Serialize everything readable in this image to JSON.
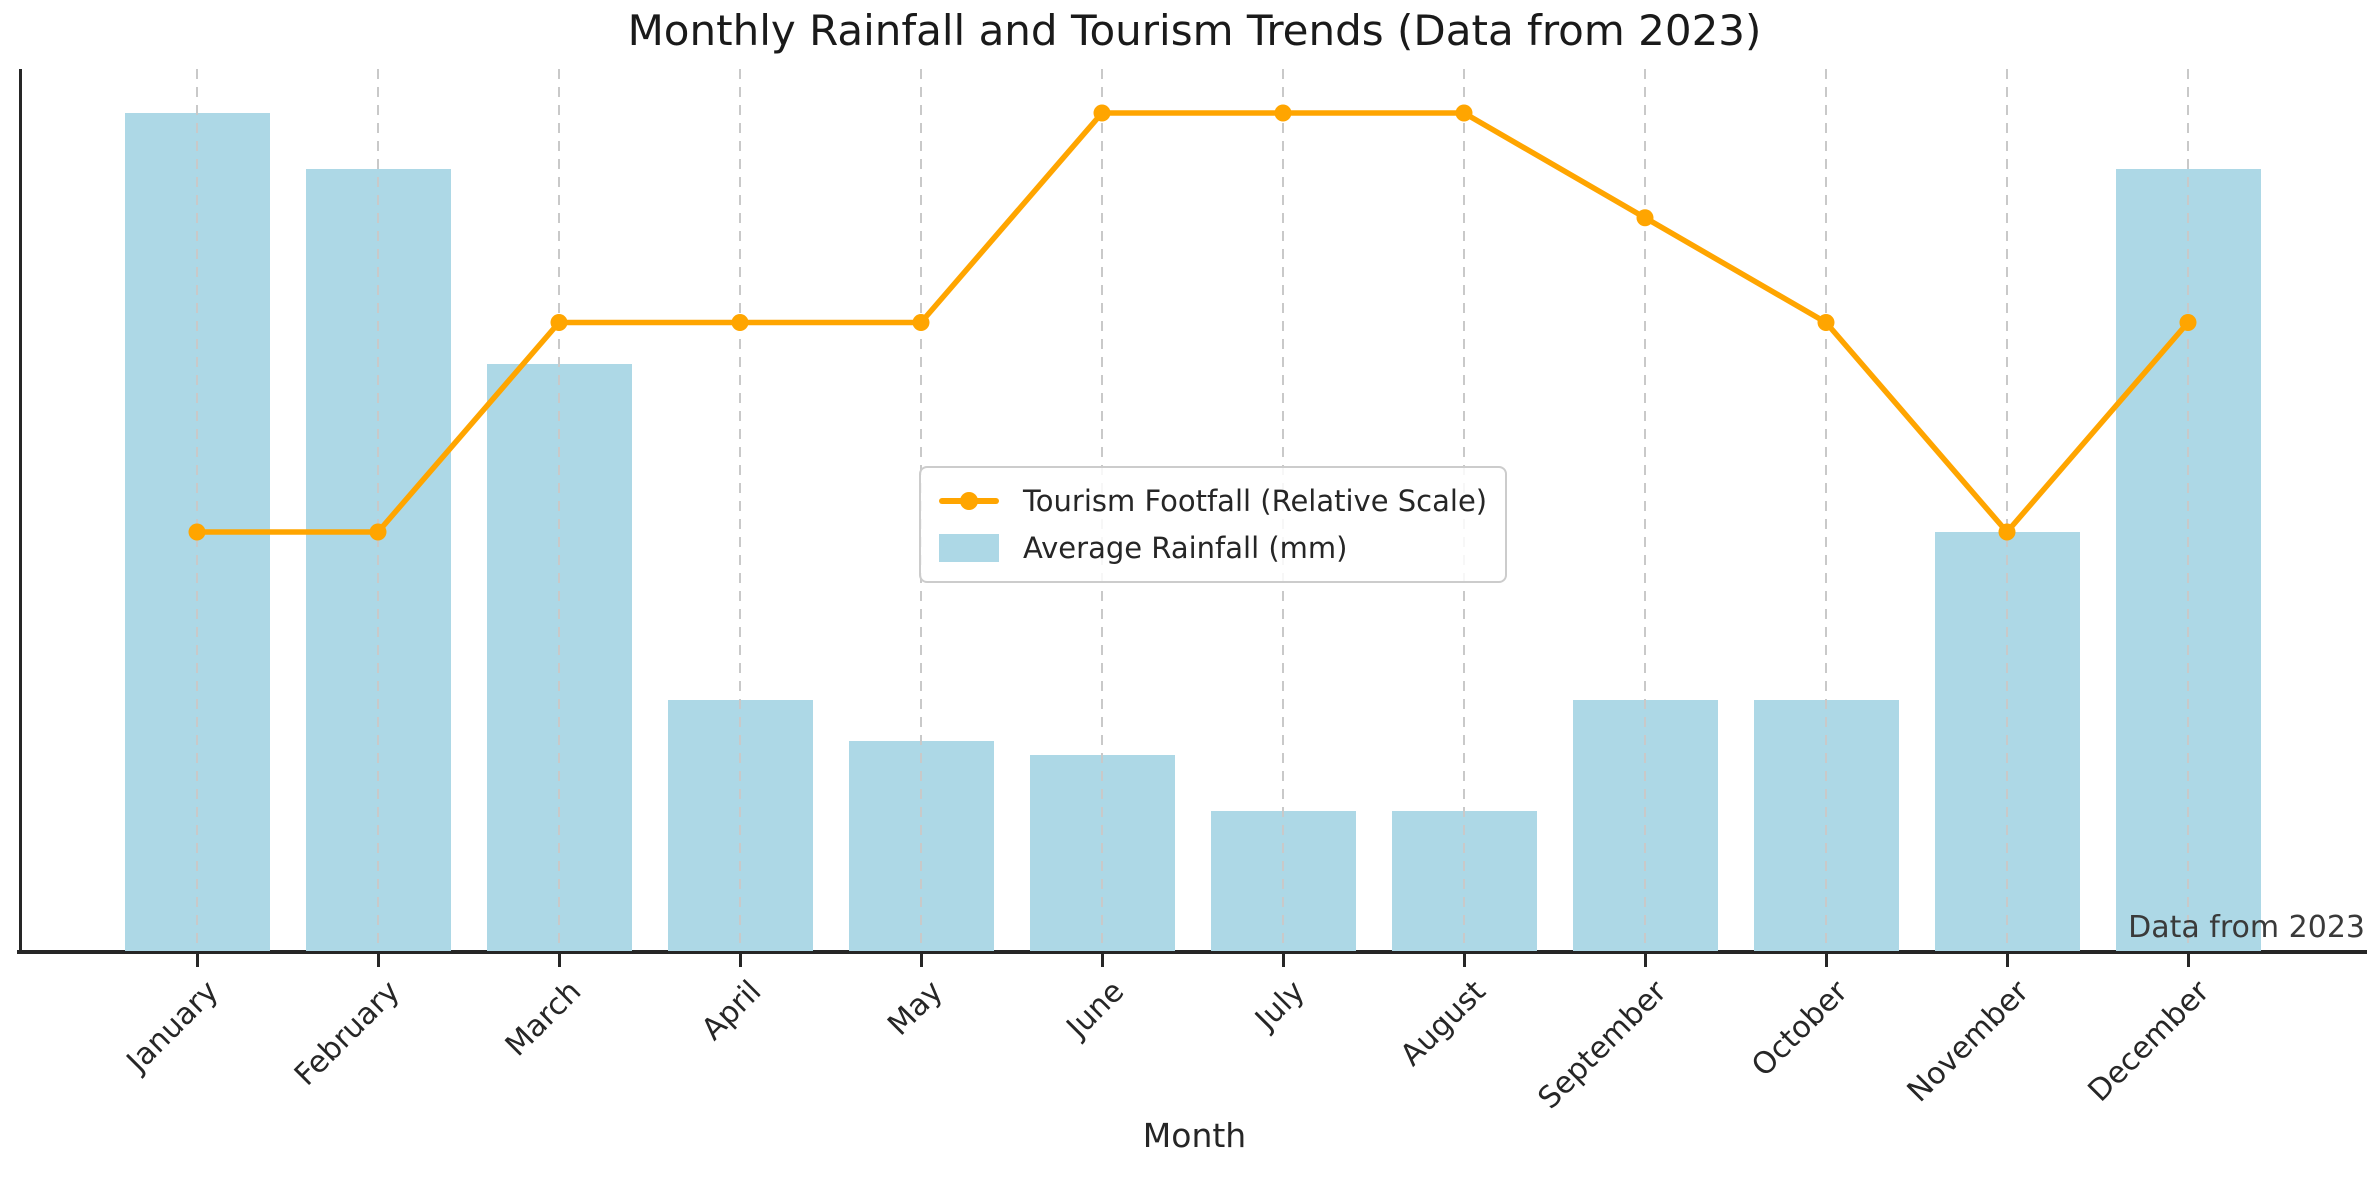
{
  "figure": {
    "title": "Monthly Rainfall and Tourism Trends (Data from 2023)",
    "xlabel": "Month",
    "annotation": "Data from 2023"
  },
  "chart_data": {
    "type": "bar+line",
    "title": "Monthly Rainfall and Tourism Trends (Data from 2023)",
    "xlabel": "Month",
    "ylabel": "",
    "categories": [
      "January",
      "February",
      "March",
      "April",
      "May",
      "June",
      "July",
      "August",
      "September",
      "October",
      "November",
      "December"
    ],
    "series": [
      {
        "name": "Tourism Footfall (Relative Scale)",
        "type": "line",
        "marker": "circle",
        "color": "#FFA500",
        "values": [
          60,
          60,
          90,
          90,
          90,
          120,
          120,
          120,
          105,
          90,
          60,
          90
        ]
      },
      {
        "name": "Average Rainfall (mm)",
        "type": "bar",
        "color": "#ADD8E6",
        "values": [
          120,
          112,
          84,
          36,
          30,
          28,
          20,
          20,
          36,
          36,
          60,
          112
        ]
      }
    ],
    "ylim": [
      0,
      126.3
    ],
    "y_axis_ticks": "none",
    "grid": "vertical-dashed",
    "grid_color": "#c9c9c9",
    "legend_position": "center-inside",
    "annotation": "Data from 2023",
    "annotation_position": "lower-right"
  }
}
